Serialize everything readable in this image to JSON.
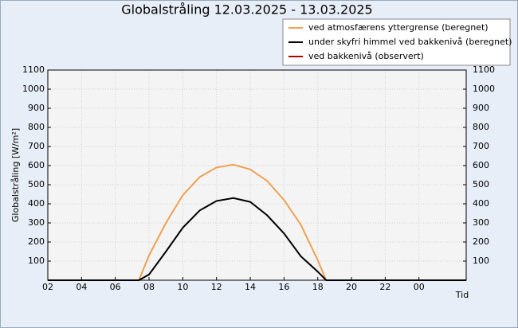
{
  "chart_data": {
    "type": "line",
    "title": "Globalstråling 12.03.2025 - 13.03.2025",
    "y_label": "Globalstråling [W/m²]",
    "x_label": "Tid",
    "x": [
      2,
      3,
      4,
      5,
      6,
      7,
      7.4,
      8,
      9,
      10,
      11,
      12,
      13,
      14,
      15,
      16,
      17,
      18,
      18.5,
      19,
      20,
      21,
      22,
      23,
      24,
      25,
      26.8
    ],
    "series": [
      {
        "name": "ved atmosfærens  yttergrense (beregnet)",
        "color": "#f0a050",
        "values": [
          0,
          0,
          0,
          0,
          0,
          0,
          0,
          130,
          300,
          445,
          540,
          590,
          605,
          580,
          520,
          420,
          290,
          105,
          0,
          0,
          0,
          0,
          0,
          0,
          0,
          0,
          0
        ]
      },
      {
        "name": "under skyfri himmel ved bakkenivå (beregnet)",
        "color": "#000000",
        "values": [
          0,
          0,
          0,
          0,
          0,
          0,
          0,
          30,
          150,
          275,
          365,
          415,
          430,
          410,
          340,
          245,
          125,
          45,
          0,
          0,
          0,
          0,
          0,
          0,
          0,
          0,
          0
        ]
      },
      {
        "name": "ved bakkenivå (observert)",
        "color": "#aa0000",
        "values": [
          null,
          null,
          null,
          null,
          null,
          null,
          null,
          null,
          null,
          null,
          null,
          null,
          null,
          null,
          null,
          null,
          null,
          null,
          null,
          null,
          null,
          null,
          null,
          null,
          null,
          null,
          null
        ]
      }
    ],
    "xlim": [
      2,
      26.8
    ],
    "xticks": [
      {
        "value": 2,
        "label": "02"
      },
      {
        "value": 4,
        "label": "04"
      },
      {
        "value": 6,
        "label": "06"
      },
      {
        "value": 8,
        "label": "08"
      },
      10,
      12,
      14,
      16,
      18,
      20,
      22,
      {
        "value": 24,
        "label": "00"
      }
    ],
    "ylim": [
      0,
      1100
    ],
    "yticks": [
      100,
      200,
      300,
      400,
      500,
      600,
      700,
      800,
      900,
      1000,
      1100
    ],
    "grid": true
  }
}
